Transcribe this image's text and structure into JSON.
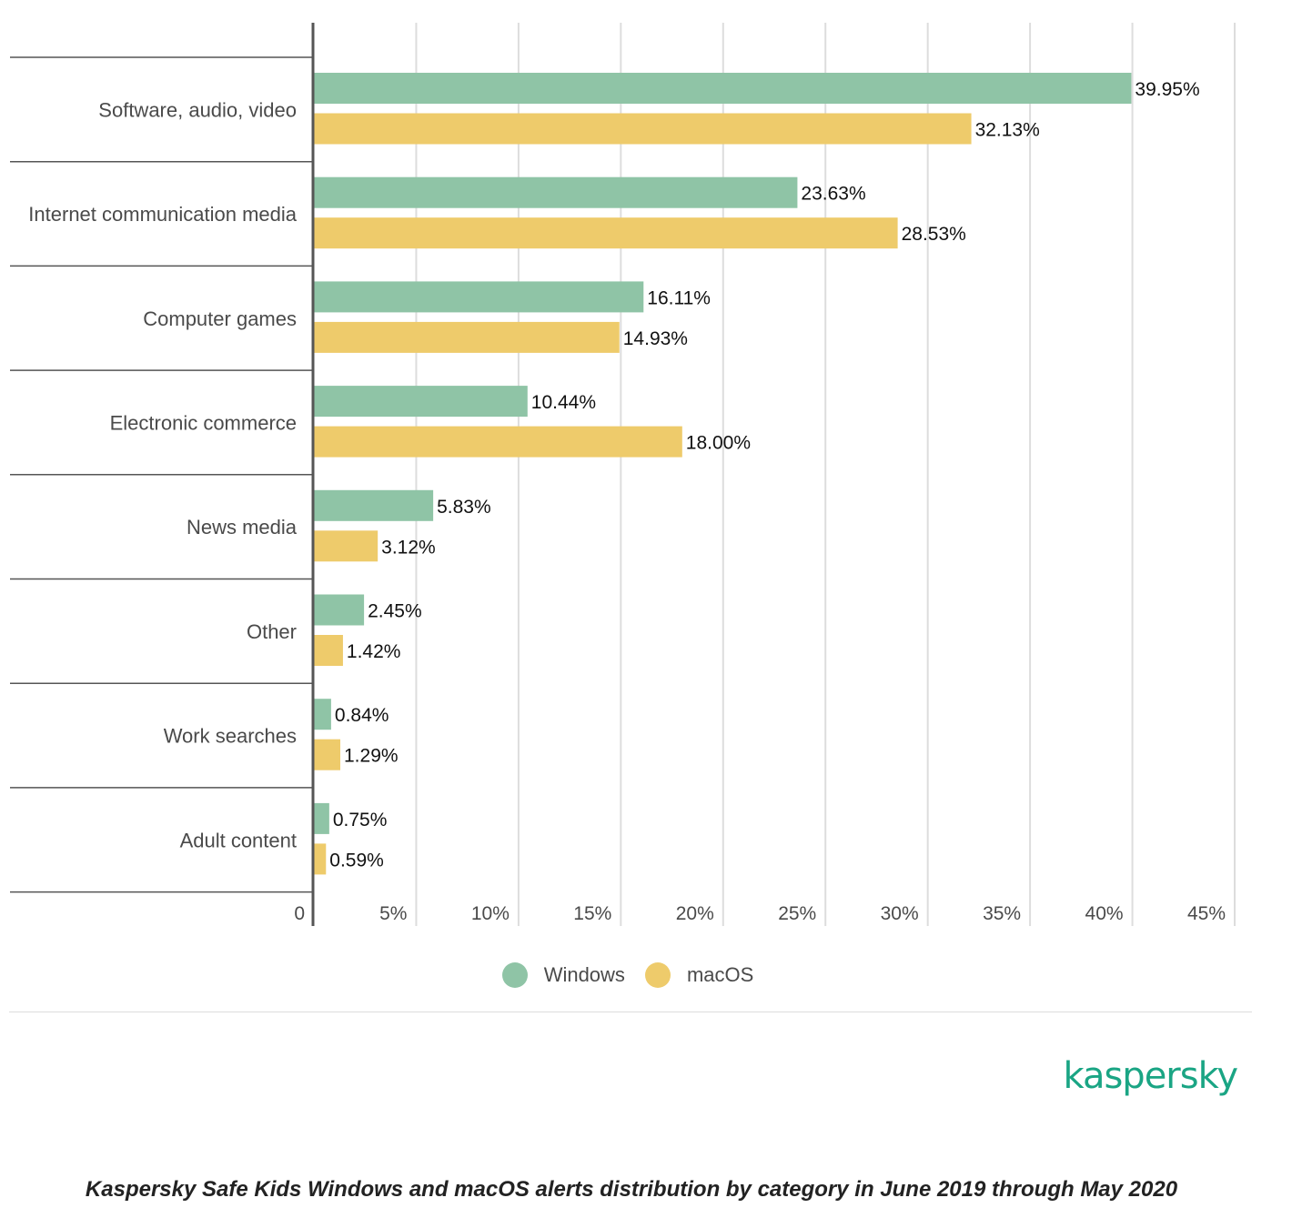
{
  "colors": {
    "windows": "#8fc4a6",
    "macos": "#eecb6b",
    "brand": "#1aa584",
    "gridline": "#dddddd",
    "axis": "#555555"
  },
  "chart_data": {
    "type": "bar",
    "orientation": "horizontal",
    "categories": [
      "Software, audio, video",
      "Internet communication media",
      "Computer games",
      "Electronic commerce",
      "News media",
      "Other",
      "Work searches",
      "Adult content"
    ],
    "series": [
      {
        "name": "Windows",
        "values": [
          39.95,
          23.63,
          16.11,
          10.44,
          5.83,
          2.45,
          0.84,
          0.75
        ],
        "labels": [
          "39.95%",
          "23.63%",
          "16.11%",
          "10.44%",
          "5.83%",
          "2.45%",
          "0.84%",
          "0.75%"
        ]
      },
      {
        "name": "macOS",
        "values": [
          32.13,
          28.53,
          14.93,
          18.0,
          3.12,
          1.42,
          1.29,
          0.59
        ],
        "labels": [
          "32.13%",
          "28.53%",
          "14.93%",
          "18.00%",
          "3.12%",
          "1.42%",
          "1.29%",
          "0.59%"
        ]
      }
    ],
    "xlim": [
      0,
      45
    ],
    "xticks": [
      0,
      5,
      10,
      15,
      20,
      25,
      30,
      35,
      40,
      45
    ],
    "xtick_labels": [
      "0",
      "5%",
      "10%",
      "15%",
      "20%",
      "25%",
      "30%",
      "35%",
      "40%",
      "45%"
    ],
    "grid": true,
    "legend_position": "bottom-center"
  },
  "legend": {
    "windows_label": "Windows",
    "macos_label": "macOS"
  },
  "logo": {
    "text": "kaspersky"
  },
  "caption": "Kaspersky Safe Kids Windows and macOS alerts distribution by category in June 2019 through May 2020"
}
